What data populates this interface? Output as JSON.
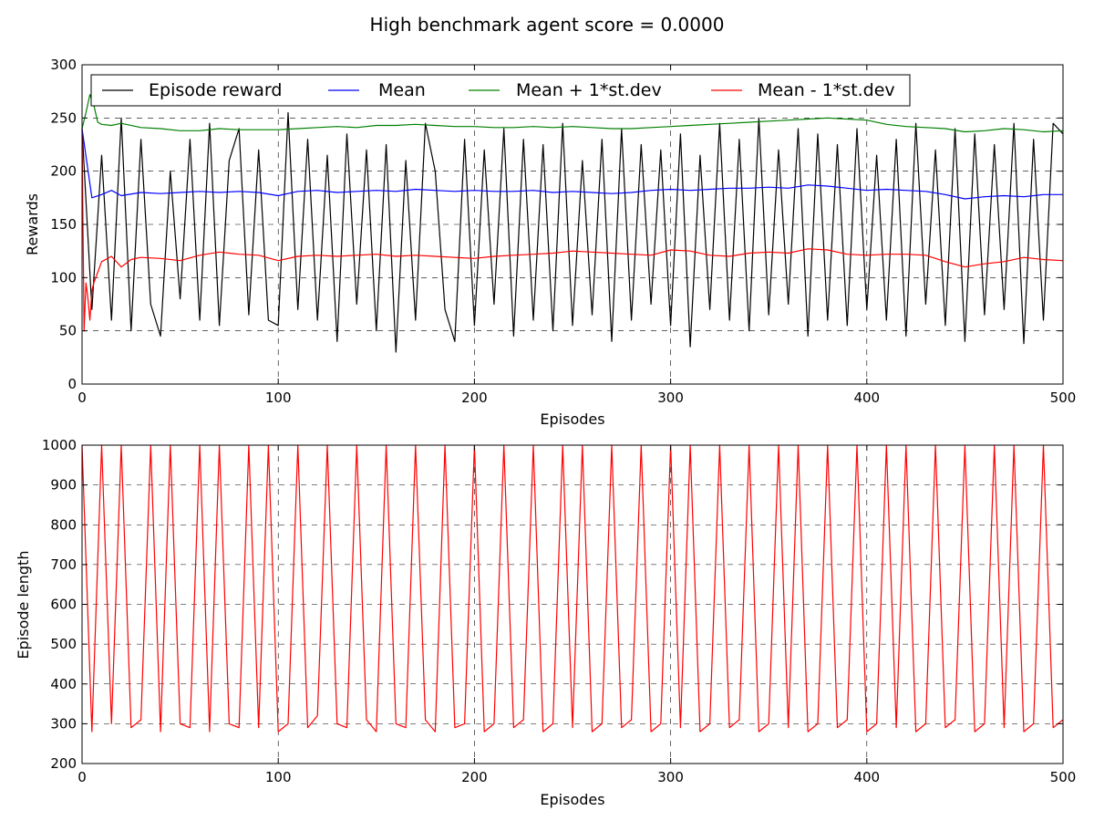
{
  "figure": {
    "suptitle": "High benchmark agent score = 0.0000"
  },
  "colors": {
    "episode_reward": "#000000",
    "mean": "#0000ff",
    "mean_plus_std": "#008000",
    "mean_minus_std": "#ff0000",
    "episode_length": "#ff0000"
  },
  "chart_data": [
    {
      "type": "line",
      "xlabel": "Episodes",
      "ylabel": "Rewards",
      "xlim": [
        0,
        500
      ],
      "ylim": [
        0,
        300
      ],
      "xticks": [
        "0",
        "100",
        "200",
        "300",
        "400",
        "500"
      ],
      "yticks": [
        "0",
        "50",
        "100",
        "150",
        "200",
        "250",
        "300"
      ],
      "grid": true,
      "legend_position": "top-left",
      "series": [
        {
          "name": "Episode reward",
          "color": "#000000",
          "x": [
            0,
            5,
            10,
            15,
            20,
            25,
            30,
            35,
            40,
            45,
            50,
            55,
            60,
            65,
            70,
            75,
            80,
            85,
            90,
            95,
            100,
            105,
            110,
            115,
            120,
            125,
            130,
            135,
            140,
            145,
            150,
            155,
            160,
            165,
            170,
            175,
            180,
            185,
            190,
            195,
            200,
            205,
            210,
            215,
            220,
            225,
            230,
            235,
            240,
            245,
            250,
            255,
            260,
            265,
            270,
            275,
            280,
            285,
            290,
            295,
            300,
            305,
            310,
            315,
            320,
            325,
            330,
            335,
            340,
            345,
            350,
            355,
            360,
            365,
            370,
            375,
            380,
            385,
            390,
            395,
            400,
            405,
            410,
            415,
            420,
            425,
            430,
            435,
            440,
            445,
            450,
            455,
            460,
            465,
            470,
            475,
            480,
            485,
            490,
            495,
            500
          ],
          "values": [
            240,
            70,
            215,
            60,
            250,
            50,
            230,
            75,
            45,
            200,
            80,
            230,
            60,
            245,
            55,
            210,
            240,
            65,
            220,
            60,
            55,
            255,
            70,
            230,
            60,
            215,
            40,
            235,
            75,
            220,
            50,
            225,
            30,
            210,
            60,
            245,
            200,
            70,
            40,
            230,
            55,
            220,
            75,
            240,
            45,
            230,
            60,
            225,
            50,
            245,
            55,
            210,
            65,
            230,
            40,
            240,
            60,
            225,
            75,
            220,
            55,
            235,
            35,
            215,
            70,
            245,
            60,
            230,
            50,
            250,
            65,
            220,
            75,
            240,
            45,
            235,
            60,
            225,
            55,
            240,
            70,
            215,
            60,
            230,
            45,
            245,
            75,
            220,
            55,
            240,
            40,
            235,
            65,
            225,
            70,
            245,
            38,
            230,
            60,
            245,
            235
          ]
        },
        {
          "name": "Mean",
          "color": "#0000ff",
          "x": [
            0,
            5,
            10,
            15,
            20,
            30,
            40,
            50,
            60,
            70,
            80,
            90,
            100,
            110,
            120,
            130,
            140,
            150,
            160,
            170,
            180,
            190,
            200,
            210,
            220,
            230,
            240,
            250,
            260,
            270,
            280,
            290,
            300,
            310,
            320,
            330,
            340,
            350,
            360,
            370,
            380,
            390,
            400,
            410,
            420,
            430,
            440,
            450,
            460,
            470,
            480,
            490,
            500
          ],
          "values": [
            240,
            175,
            178,
            182,
            177,
            180,
            179,
            180,
            181,
            180,
            181,
            180,
            177,
            181,
            182,
            180,
            181,
            182,
            181,
            183,
            182,
            181,
            182,
            181,
            181,
            182,
            180,
            181,
            180,
            179,
            180,
            182,
            183,
            182,
            183,
            184,
            184,
            185,
            184,
            187,
            186,
            184,
            182,
            183,
            182,
            181,
            178,
            174,
            176,
            177,
            176,
            178,
            178
          ]
        },
        {
          "name": "Mean + 1*st.dev",
          "color": "#008000",
          "x": [
            0,
            2,
            4,
            6,
            8,
            10,
            15,
            20,
            30,
            40,
            50,
            60,
            70,
            80,
            90,
            100,
            110,
            120,
            130,
            140,
            150,
            160,
            170,
            180,
            190,
            200,
            210,
            220,
            230,
            240,
            250,
            260,
            270,
            280,
            290,
            300,
            310,
            320,
            330,
            340,
            350,
            360,
            370,
            380,
            390,
            400,
            410,
            420,
            430,
            440,
            450,
            460,
            470,
            480,
            490,
            500
          ],
          "values": [
            240,
            255,
            272,
            262,
            246,
            244,
            243,
            245,
            241,
            240,
            238,
            238,
            240,
            239,
            239,
            239,
            240,
            241,
            242,
            241,
            243,
            243,
            244,
            243,
            242,
            242,
            241,
            241,
            242,
            241,
            242,
            241,
            240,
            240,
            241,
            242,
            243,
            244,
            245,
            246,
            247,
            248,
            249,
            250,
            249,
            248,
            244,
            242,
            241,
            240,
            237,
            238,
            240,
            239,
            237,
            238
          ]
        },
        {
          "name": "Mean - 1*st.dev",
          "color": "#ff0000",
          "x": [
            0,
            1,
            2,
            3,
            4,
            5,
            6,
            8,
            10,
            15,
            20,
            25,
            30,
            40,
            50,
            60,
            70,
            80,
            90,
            100,
            110,
            120,
            130,
            140,
            150,
            160,
            170,
            180,
            190,
            200,
            210,
            220,
            230,
            240,
            250,
            260,
            270,
            280,
            290,
            300,
            310,
            320,
            330,
            340,
            350,
            360,
            370,
            380,
            390,
            400,
            410,
            420,
            430,
            440,
            450,
            460,
            470,
            480,
            490,
            500
          ],
          "values": [
            240,
            50,
            95,
            80,
            60,
            88,
            95,
            105,
            115,
            120,
            110,
            117,
            119,
            118,
            116,
            121,
            124,
            122,
            121,
            116,
            120,
            121,
            120,
            121,
            122,
            120,
            121,
            120,
            119,
            118,
            120,
            121,
            122,
            123,
            125,
            124,
            123,
            122,
            121,
            126,
            125,
            121,
            120,
            123,
            124,
            123,
            127,
            126,
            122,
            121,
            122,
            122,
            121,
            115,
            110,
            113,
            115,
            119,
            117,
            116
          ]
        }
      ]
    },
    {
      "type": "line",
      "xlabel": "Episodes",
      "ylabel": "Episode length",
      "xlim": [
        0,
        500
      ],
      "ylim": [
        200,
        1000
      ],
      "xticks": [
        "0",
        "100",
        "200",
        "300",
        "400",
        "500"
      ],
      "yticks": [
        "200",
        "300",
        "400",
        "500",
        "600",
        "700",
        "800",
        "900",
        "1000"
      ],
      "grid": true,
      "legend_position": "none",
      "series": [
        {
          "color": "#ff0000",
          "x": [
            0,
            5,
            10,
            15,
            20,
            25,
            30,
            35,
            40,
            45,
            50,
            55,
            60,
            65,
            70,
            75,
            80,
            85,
            90,
            95,
            100,
            105,
            110,
            115,
            120,
            125,
            130,
            135,
            140,
            145,
            150,
            155,
            160,
            165,
            170,
            175,
            180,
            185,
            190,
            195,
            200,
            205,
            210,
            215,
            220,
            225,
            230,
            235,
            240,
            245,
            250,
            255,
            260,
            265,
            270,
            275,
            280,
            285,
            290,
            295,
            300,
            305,
            310,
            315,
            320,
            325,
            330,
            335,
            340,
            345,
            350,
            355,
            360,
            365,
            370,
            375,
            380,
            385,
            390,
            395,
            400,
            405,
            410,
            415,
            420,
            425,
            430,
            435,
            440,
            445,
            450,
            455,
            460,
            465,
            470,
            475,
            480,
            485,
            490,
            495,
            500
          ],
          "values": [
            1000,
            280,
            1000,
            300,
            1000,
            290,
            310,
            1000,
            280,
            1000,
            300,
            290,
            1000,
            280,
            1000,
            300,
            290,
            1000,
            290,
            1000,
            280,
            300,
            1000,
            290,
            320,
            1000,
            300,
            290,
            1000,
            310,
            280,
            1000,
            300,
            290,
            1000,
            310,
            280,
            1000,
            290,
            300,
            1000,
            280,
            300,
            1000,
            290,
            310,
            1000,
            280,
            300,
            1000,
            290,
            1000,
            280,
            300,
            1000,
            290,
            310,
            1000,
            280,
            300,
            1000,
            290,
            1000,
            280,
            300,
            1000,
            290,
            310,
            1000,
            280,
            300,
            1000,
            290,
            1000,
            280,
            300,
            1000,
            290,
            310,
            1000,
            280,
            300,
            1000,
            290,
            1000,
            280,
            300,
            1000,
            290,
            310,
            1000,
            280,
            300,
            1000,
            290,
            1000,
            280,
            300,
            1000,
            290,
            310
          ]
        }
      ]
    }
  ]
}
